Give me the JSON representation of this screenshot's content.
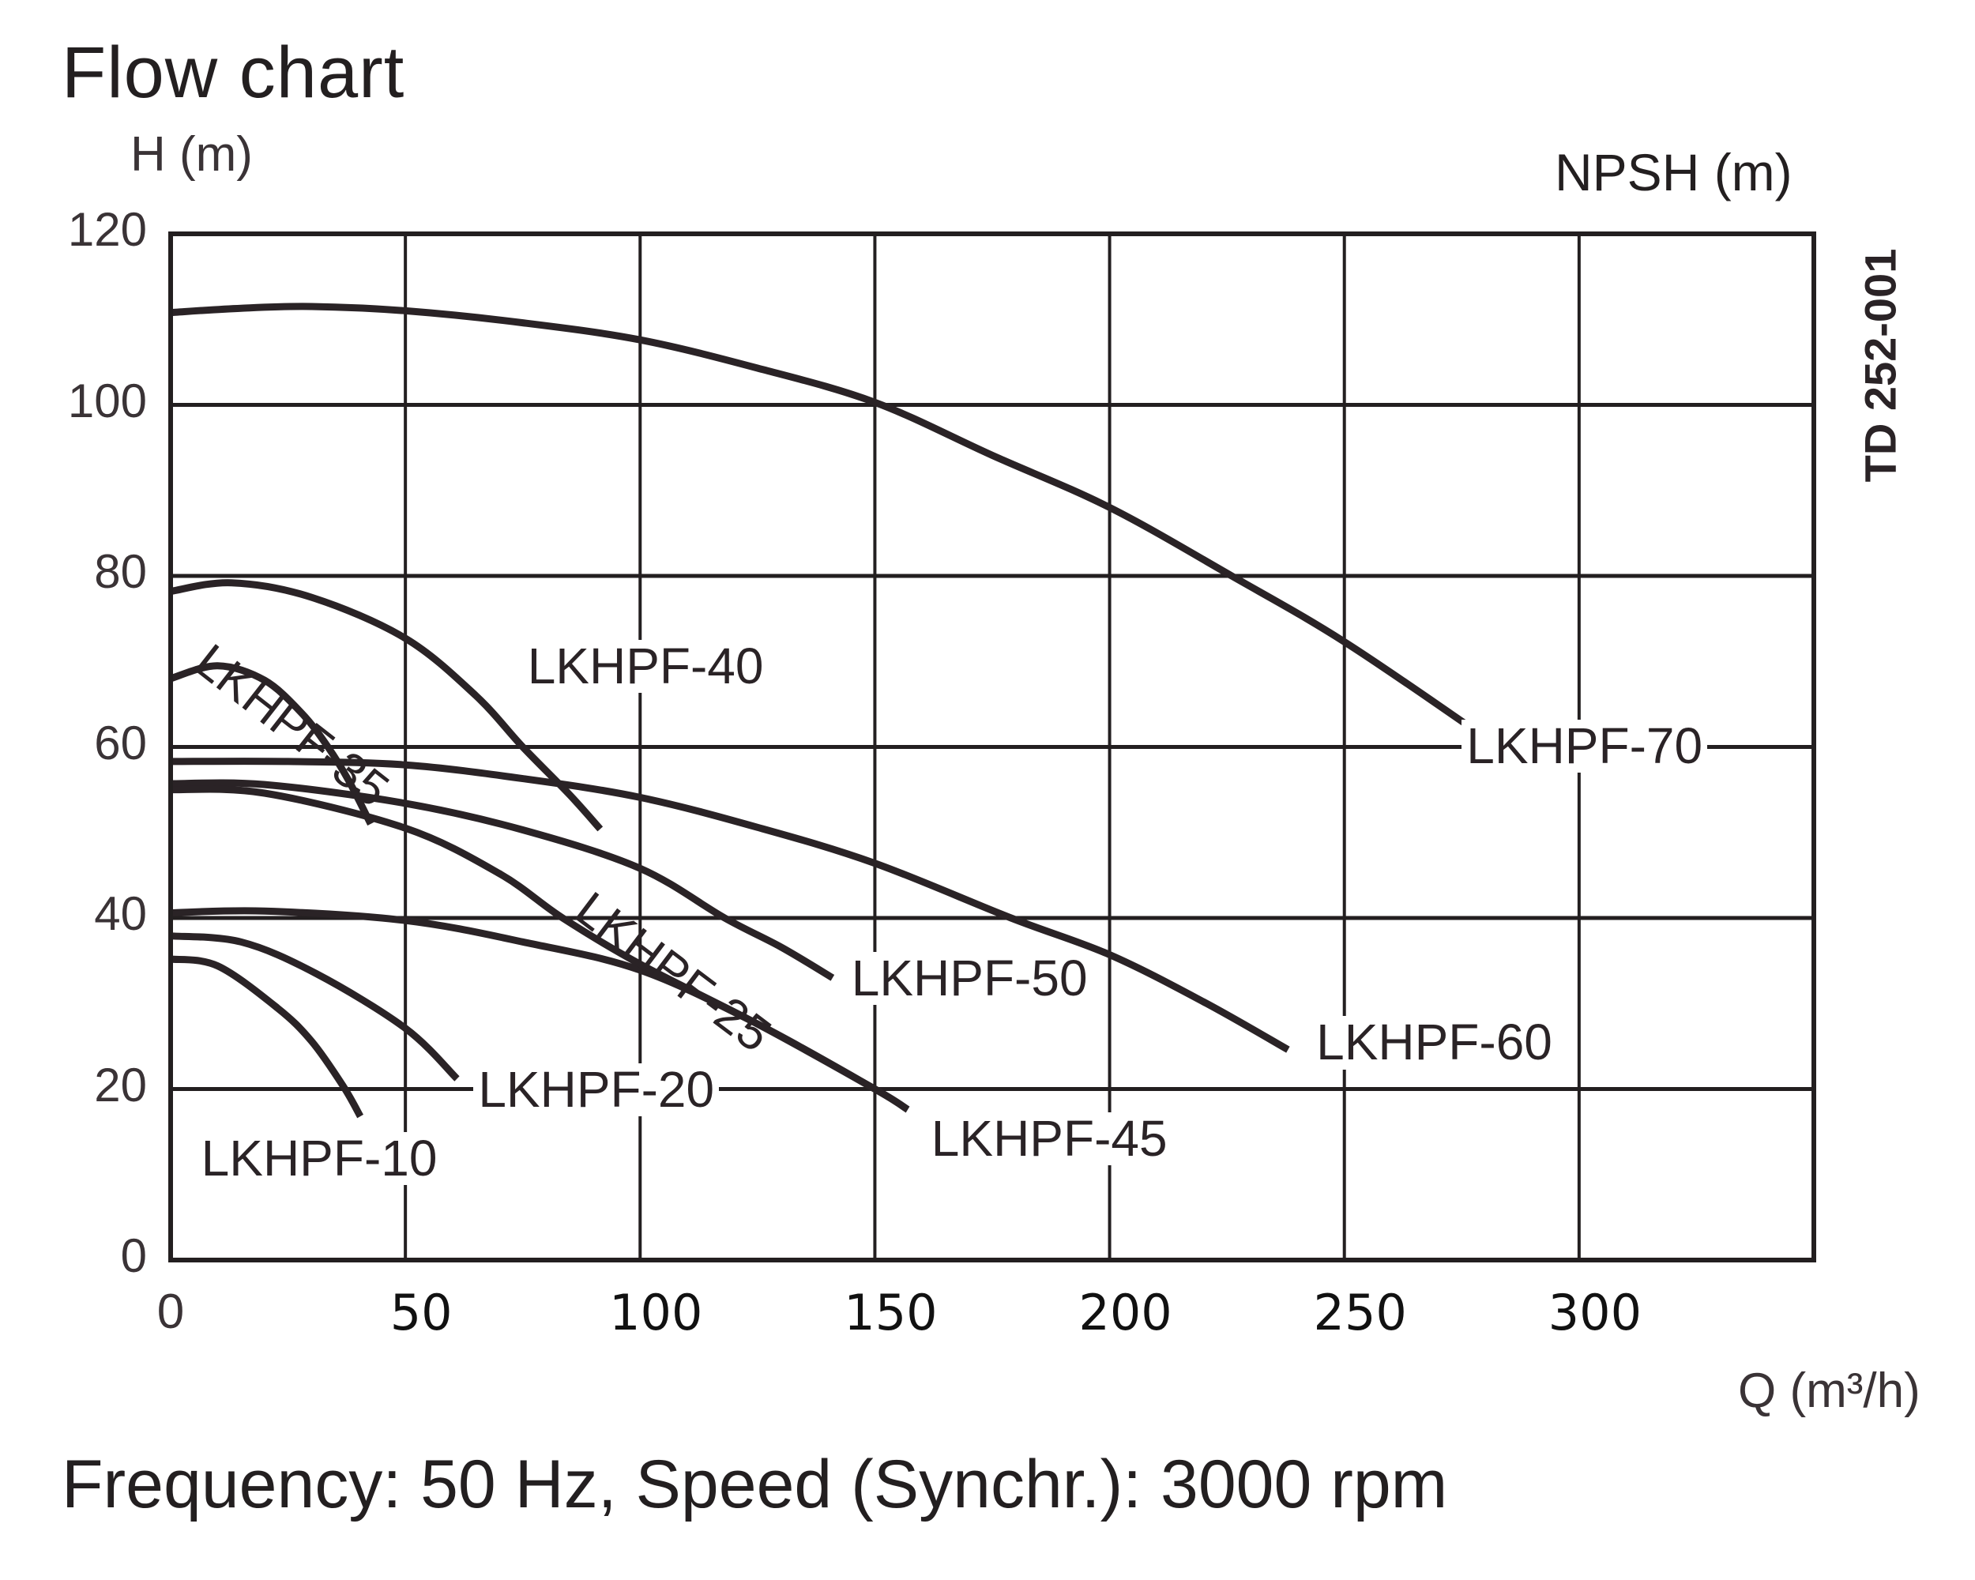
{
  "page": {
    "title": "Flow chart",
    "y_unit_label": "H (m)",
    "npsh_label": "NPSH (m)",
    "drawing_code": "TD 252-001",
    "x_unit_label": "Q (m³/h)",
    "caption": "Frequency:  50 Hz,  Speed (Synchr.):  3000 rpm"
  },
  "chart_data": {
    "type": "line",
    "title": "Flow chart",
    "xlabel": "Q (m³/h)",
    "ylabel": "H (m)",
    "secondary_ylabel": "NPSH (m)",
    "xlim": [
      0,
      350
    ],
    "ylim": [
      0,
      120
    ],
    "x_ticks": [
      0,
      50,
      100,
      150,
      200,
      250,
      300
    ],
    "x_tick_labels": [
      "0",
      "50",
      "100",
      "150",
      "200",
      "250",
      "300"
    ],
    "y_ticks": [
      0,
      20,
      40,
      60,
      80,
      100,
      120
    ],
    "y_tick_labels": [
      "0",
      "20",
      "40",
      "60",
      "80",
      "100",
      "120"
    ],
    "grid": true,
    "legend": "none (inline curve labels)",
    "series": [
      {
        "name": "LKHPF-70",
        "label": "LKHPF-70",
        "x": [
          0,
          15,
          30,
          50,
          75,
          100,
          125,
          150,
          175,
          200,
          226,
          250,
          279
        ],
        "y": [
          110.8,
          111.3,
          111.5,
          111.0,
          109.6,
          107.6,
          104.3,
          100.3,
          94.1,
          88.0,
          80.0,
          72.3,
          61.5
        ]
      },
      {
        "name": "LKHPF-60",
        "label": "LKHPF-60",
        "x": [
          0,
          25,
          50,
          75,
          100,
          125,
          150,
          179,
          200,
          220,
          238
        ],
        "y": [
          58.3,
          58.3,
          57.9,
          56.3,
          54.1,
          50.6,
          46.4,
          40.0,
          35.7,
          30.2,
          24.6
        ]
      },
      {
        "name": "LKHPF-50",
        "label": "LKHPF-50",
        "x": [
          0,
          20,
          50,
          75,
          100,
          118,
          130,
          141
        ],
        "y": [
          55.7,
          55.6,
          53.4,
          50.3,
          45.8,
          40.0,
          36.6,
          33.0
        ]
      },
      {
        "name": "LKHPF-45",
        "label": "LKHPF-45",
        "x": [
          0,
          20,
          50,
          75,
          100,
          125,
          150,
          157
        ],
        "y": [
          40.6,
          40.8,
          39.7,
          37.2,
          33.9,
          27.6,
          20.0,
          17.6
        ]
      },
      {
        "name": "LKHPF-40",
        "label": "LKHPF-40",
        "x": [
          0,
          13,
          30,
          50,
          65,
          75,
          85,
          91.5
        ],
        "y": [
          78.2,
          79.2,
          77.5,
          72.7,
          66.0,
          60.0,
          54.4,
          50.4
        ]
      },
      {
        "name": "LKHPF-35",
        "label": "LKHPF-35",
        "x": [
          0,
          10,
          20,
          28,
          33.5,
          38,
          42.6
        ],
        "y": [
          68.0,
          69.5,
          67.8,
          63.9,
          60.0,
          56.0,
          51.0
        ]
      },
      {
        "name": "LKHPF-25",
        "label": "LKHPF-25",
        "x": [
          0,
          20,
          50,
          70,
          83.5,
          100,
          125,
          150,
          157
        ],
        "y": [
          55.0,
          54.6,
          50.5,
          45.2,
          40.0,
          34.6,
          27.6,
          20.0,
          17.6
        ]
      },
      {
        "name": "LKHPF-20",
        "label": "LKHPF-20",
        "x": [
          0,
          15,
          31,
          50,
          61
        ],
        "y": [
          37.9,
          37.2,
          33.5,
          27.1,
          21.2
        ]
      },
      {
        "name": "LKHPF-10",
        "label": "LKHPF-10",
        "x": [
          0,
          10,
          22.7,
          30,
          36.8,
          40.4
        ],
        "y": [
          35.2,
          34.4,
          29.5,
          25.6,
          20.3,
          16.8
        ]
      }
    ]
  }
}
